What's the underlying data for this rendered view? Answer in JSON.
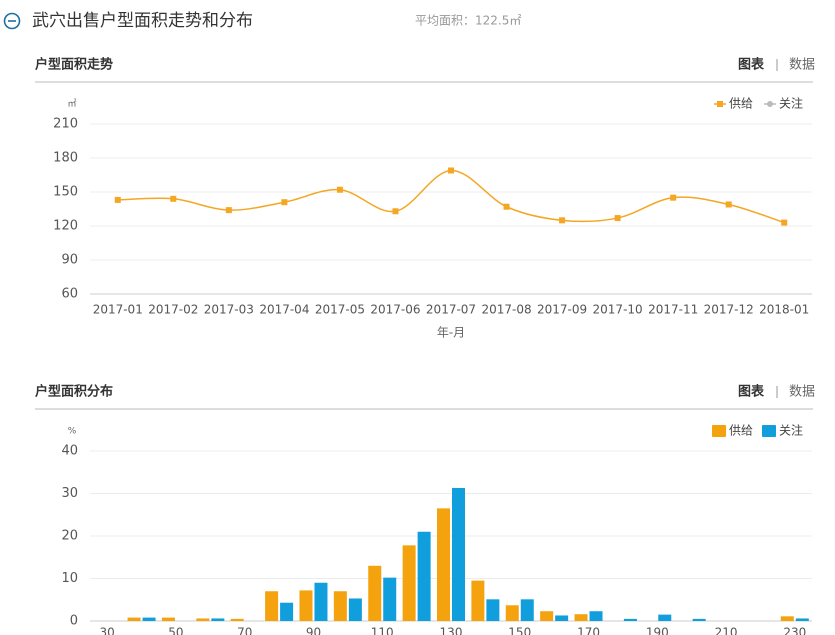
{
  "header": {
    "title": "武穴出售户型面积走势和分布",
    "average": "平均面积：122.5㎡"
  },
  "chart_data": [
    {
      "type": "line",
      "title": "户型面积走势",
      "tabs": [
        "图表",
        "数据"
      ],
      "y_unit": "㎡",
      "x_label": "年-月",
      "categories": [
        "2017-01",
        "2017-02",
        "2017-03",
        "2017-04",
        "2017-05",
        "2017-06",
        "2017-07",
        "2017-08",
        "2017-09",
        "2017-10",
        "2017-11",
        "2017-12",
        "2018-01"
      ],
      "series": [
        {
          "name": "供给",
          "color": "#f5a623",
          "values": [
            143,
            144,
            134,
            141,
            152,
            133,
            169,
            137,
            125,
            127,
            145,
            139,
            123
          ]
        },
        {
          "name": "关注",
          "color": "#bbbbbb",
          "values": [
            null,
            null,
            null,
            null,
            null,
            null,
            null,
            null,
            null,
            null,
            null,
            null,
            null
          ]
        }
      ],
      "ylim": [
        60,
        210
      ],
      "yticks": [
        60,
        90,
        120,
        150,
        180,
        210
      ],
      "grid": true,
      "legend": "top-right"
    },
    {
      "type": "bar",
      "title": "户型面积分布",
      "tabs": [
        "图表",
        "数据"
      ],
      "y_unit": "%",
      "categories": [
        30,
        null,
        50,
        null,
        70,
        null,
        90,
        null,
        110,
        null,
        130,
        null,
        150,
        null,
        170,
        null,
        190,
        null,
        210,
        null,
        230
      ],
      "series": [
        {
          "name": "供给",
          "color": "#f5a20f",
          "values": [
            0,
            0.8,
            0.8,
            0.6,
            0.5,
            7,
            7.2,
            7,
            13,
            17.8,
            26.5,
            9.5,
            3.7,
            2.3,
            1.6,
            0,
            0,
            0,
            0,
            0,
            1.1
          ]
        },
        {
          "name": "关注",
          "color": "#109fdc",
          "values": [
            0,
            0.8,
            0,
            0.6,
            0,
            4.3,
            9,
            5.3,
            10.2,
            21,
            31.3,
            5.1,
            5.1,
            1.3,
            2.3,
            0.5,
            1.5,
            0.5,
            0,
            0,
            0.6
          ]
        }
      ],
      "ylim": [
        0,
        40
      ],
      "yticks": [
        0,
        10,
        20,
        30,
        40
      ],
      "grid": true,
      "legend": "top-right"
    }
  ]
}
